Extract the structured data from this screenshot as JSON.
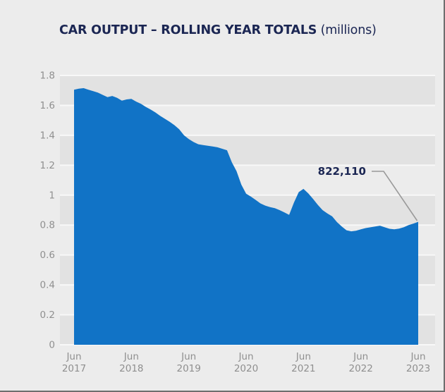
{
  "title": {
    "heading": "CAR OUTPUT – ROLLING YEAR TOTALS",
    "unit": "(millions)"
  },
  "annotation": {
    "label": "822,110"
  },
  "colors": {
    "background": "#ececec",
    "band_dark": "#e2e2e2",
    "gridline": "#f8f8f8",
    "area_fill": "#1173c6",
    "navy_text": "#1b2653",
    "axis_text": "#8f8f8f",
    "leader_line": "#9a9a9a",
    "edge_border": "#6e6e6e"
  },
  "chart_data": {
    "type": "area",
    "title": "CAR OUTPUT – ROLLING YEAR TOTALS (millions)",
    "series_name": "Car output, rolling year total (millions)",
    "x_start": "2017-06",
    "x_interval": "monthly",
    "x_end": "2023-06",
    "values": [
      1.705,
      1.712,
      1.715,
      1.705,
      1.695,
      1.685,
      1.67,
      1.655,
      1.663,
      1.65,
      1.632,
      1.64,
      1.643,
      1.625,
      1.61,
      1.59,
      1.573,
      1.553,
      1.53,
      1.51,
      1.49,
      1.468,
      1.44,
      1.4,
      1.375,
      1.355,
      1.34,
      1.335,
      1.33,
      1.325,
      1.32,
      1.31,
      1.3,
      1.22,
      1.16,
      1.07,
      1.01,
      0.99,
      0.968,
      0.945,
      0.93,
      0.92,
      0.913,
      0.9,
      0.885,
      0.868,
      0.95,
      1.02,
      1.042,
      1.012,
      0.975,
      0.935,
      0.9,
      0.878,
      0.858,
      0.82,
      0.79,
      0.765,
      0.758,
      0.762,
      0.772,
      0.78,
      0.785,
      0.79,
      0.796,
      0.785,
      0.775,
      0.772,
      0.776,
      0.786,
      0.8,
      0.81,
      0.822
    ],
    "ylim": [
      0,
      1.8
    ],
    "y_ticks": [
      "1.8",
      "1.6",
      "1.4",
      "1.2",
      "1",
      "0.8",
      "0.6",
      "0.4",
      "0.2",
      "0"
    ],
    "x_tick_labels": [
      [
        "Jun",
        "2017"
      ],
      [
        "Jun",
        "2018"
      ],
      [
        "Jun",
        "2019"
      ],
      [
        "Jun",
        "2020"
      ],
      [
        "Jun",
        "2021"
      ],
      [
        "Jun",
        "2022"
      ],
      [
        "Jun",
        "2023"
      ]
    ],
    "grid": "horizontal white gridlines every 0.2 with alternating shaded bands",
    "legend": "none",
    "annotation": {
      "text": "822,110",
      "points_to": "2023-06",
      "value_millions": 0.82211
    }
  }
}
